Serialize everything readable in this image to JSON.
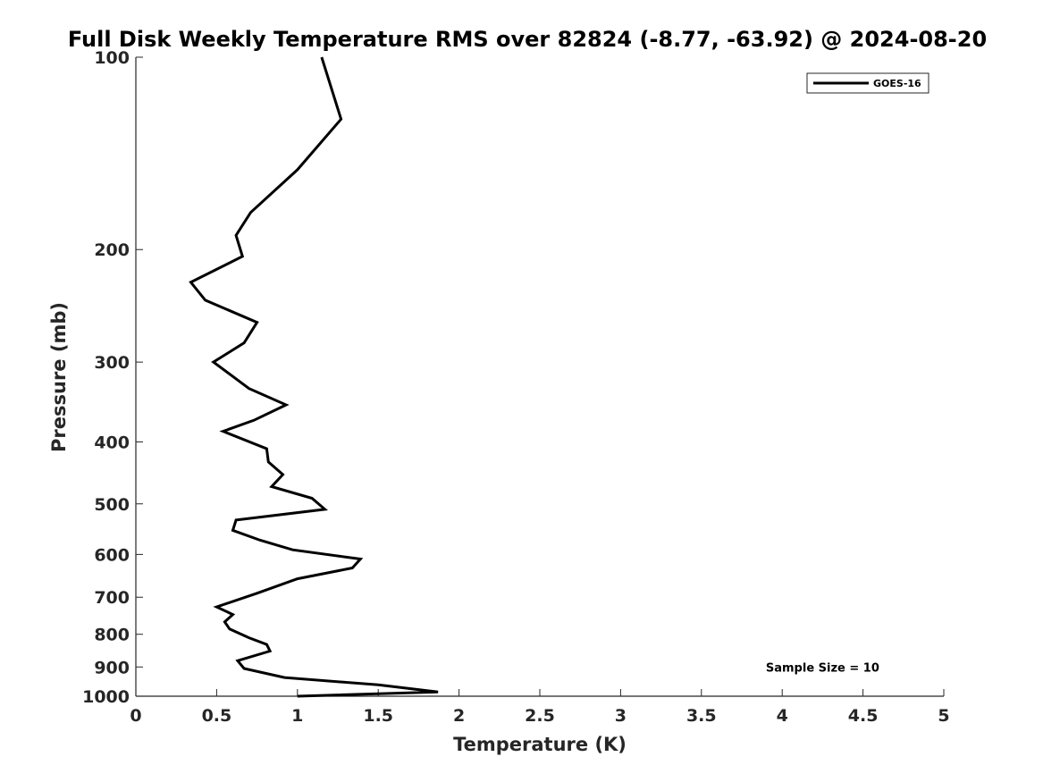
{
  "chart_data": {
    "type": "line",
    "title": "Full Disk Weekly Temperature RMS over 82824 (-8.77, -63.92) @ 2024-08-20",
    "xlabel": "Temperature (K)",
    "ylabel": "Pressure (mb)",
    "xlim": [
      0,
      5
    ],
    "ylim": [
      1000,
      100
    ],
    "y_scale": "log",
    "y_reversed": true,
    "x_ticks": [
      0,
      0.5,
      1,
      1.5,
      2,
      2.5,
      3,
      3.5,
      4,
      4.5,
      5
    ],
    "x_tick_labels": [
      "0",
      "0.5",
      "1",
      "1.5",
      "2",
      "2.5",
      "3",
      "3.5",
      "4",
      "4.5",
      "5"
    ],
    "y_ticks": [
      100,
      200,
      300,
      400,
      500,
      600,
      700,
      800,
      900,
      1000
    ],
    "y_tick_labels": [
      "100",
      "200",
      "300",
      "400",
      "500",
      "600",
      "700",
      "800",
      "900",
      "1000"
    ],
    "grid": false,
    "legend_position": "top-right",
    "series": [
      {
        "name": "GOES-16",
        "color": "#000000",
        "x": [
          1.15,
          1.27,
          1.0,
          0.71,
          0.62,
          0.66,
          0.34,
          0.43,
          0.75,
          0.67,
          0.48,
          0.7,
          0.93,
          0.73,
          0.54,
          0.81,
          0.82,
          0.91,
          0.84,
          1.09,
          1.17,
          0.62,
          0.6,
          0.77,
          0.97,
          1.39,
          1.34,
          1.0,
          0.75,
          0.5,
          0.6,
          0.55,
          0.58,
          0.7,
          0.81,
          0.83,
          0.63,
          0.67,
          0.92,
          1.5,
          1.87,
          1.0
        ],
        "y": [
          100,
          125,
          150,
          175,
          190,
          205,
          225,
          240,
          260,
          280,
          300,
          330,
          350,
          370,
          385,
          410,
          430,
          450,
          470,
          490,
          510,
          530,
          550,
          570,
          590,
          610,
          630,
          655,
          690,
          725,
          745,
          765,
          785,
          810,
          830,
          850,
          880,
          905,
          935,
          960,
          985,
          1000
        ]
      }
    ],
    "annotations": [
      {
        "text": "Sample Size = 10",
        "x": 4.25,
        "y": 900
      }
    ]
  }
}
